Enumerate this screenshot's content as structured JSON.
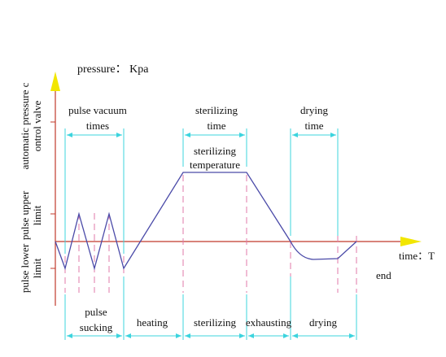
{
  "title": "pressure： Kpa",
  "y_labels": [
    {
      "lines": [
        "automatic pressure c",
        "ontrol valve"
      ]
    },
    {
      "lines": [
        "pulse upper",
        "limit"
      ]
    },
    {
      "lines": [
        "pulse lower",
        "limit"
      ]
    }
  ],
  "top_labels": [
    {
      "lines": [
        "pulse vacuum",
        "times"
      ]
    },
    {
      "lines": [
        "sterilizing",
        "time"
      ]
    },
    {
      "lines": [
        "drying",
        "time"
      ]
    }
  ],
  "plateau_label": {
    "lines": [
      "sterilizing",
      "temperature"
    ]
  },
  "x_axis_label": "time：T",
  "end_label": "end",
  "phases": [
    {
      "lines": [
        "pulse",
        "sucking"
      ]
    },
    {
      "lines": [
        "heating"
      ]
    },
    {
      "lines": [
        "sterilizing"
      ]
    },
    {
      "lines": [
        "exhausting"
      ]
    },
    {
      "lines": [
        "drying"
      ]
    }
  ]
}
